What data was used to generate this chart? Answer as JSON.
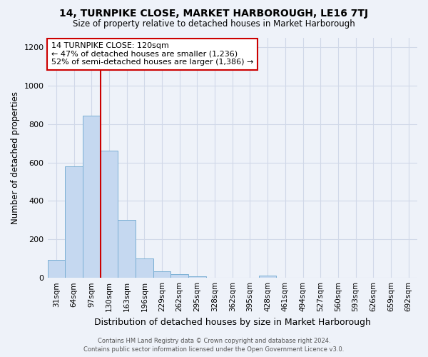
{
  "title": "14, TURNPIKE CLOSE, MARKET HARBOROUGH, LE16 7TJ",
  "subtitle": "Size of property relative to detached houses in Market Harborough",
  "xlabel": "Distribution of detached houses by size in Market Harborough",
  "ylabel": "Number of detached properties",
  "footer_line1": "Contains HM Land Registry data © Crown copyright and database right 2024.",
  "footer_line2": "Contains public sector information licensed under the Open Government Licence v3.0.",
  "bin_labels": [
    "31sqm",
    "64sqm",
    "97sqm",
    "130sqm",
    "163sqm",
    "196sqm",
    "229sqm",
    "262sqm",
    "295sqm",
    "328sqm",
    "362sqm",
    "395sqm",
    "428sqm",
    "461sqm",
    "494sqm",
    "527sqm",
    "560sqm",
    "593sqm",
    "626sqm",
    "659sqm",
    "692sqm"
  ],
  "bar_values": [
    95,
    580,
    845,
    660,
    300,
    100,
    33,
    20,
    9,
    2,
    1,
    0,
    12,
    0,
    0,
    0,
    0,
    0,
    0,
    0,
    0
  ],
  "bar_color": "#c5d8f0",
  "bar_edge_color": "#7aafd4",
  "vline_x_index": 3,
  "vline_color": "#cc0000",
  "ylim": [
    0,
    1250
  ],
  "yticks": [
    0,
    200,
    400,
    600,
    800,
    1000,
    1200
  ],
  "annotation_line1": "14 TURNPIKE CLOSE: 120sqm",
  "annotation_line2": "← 47% of detached houses are smaller (1,236)",
  "annotation_line3": "52% of semi-detached houses are larger (1,386) →",
  "annotation_box_color": "#ffffff",
  "annotation_box_edge": "#cc0000",
  "grid_color": "#d0d8e8",
  "background_color": "#eef2f9"
}
